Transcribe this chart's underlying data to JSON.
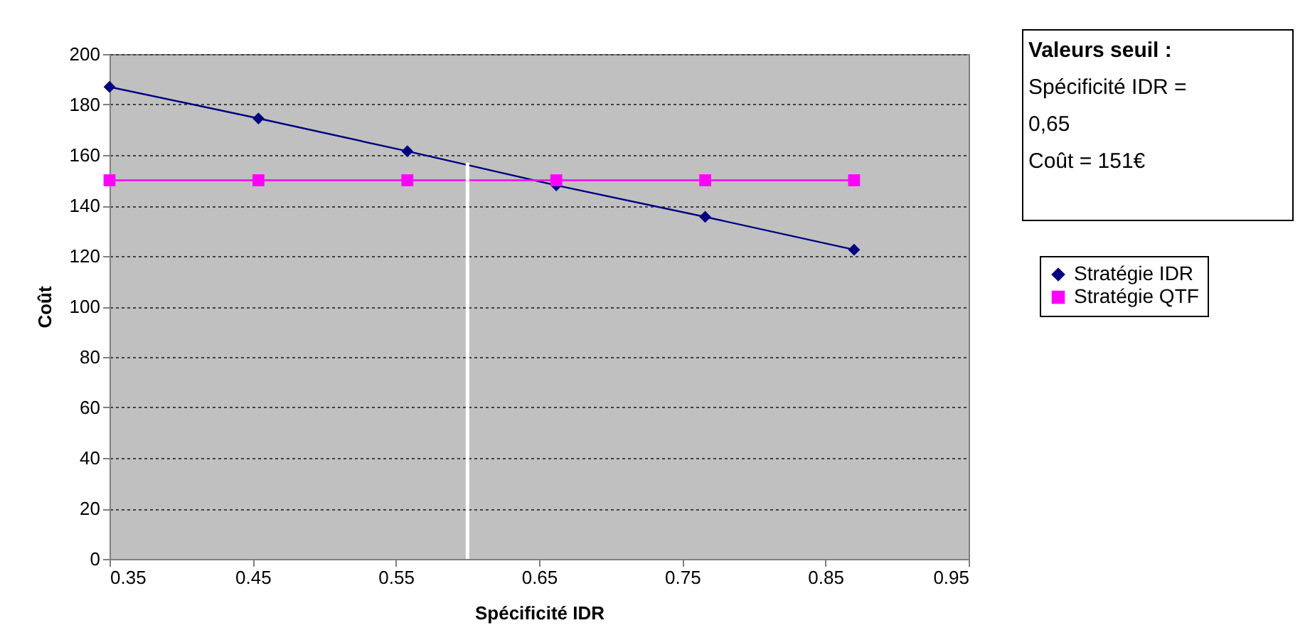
{
  "chart_data": {
    "type": "line",
    "xlabel": "Spécificité IDR",
    "ylabel": "Coût",
    "xlim": [
      0.35,
      0.95
    ],
    "xticks": [
      0.35,
      0.45,
      0.55,
      0.65,
      0.75,
      0.85,
      0.95
    ],
    "ylim": [
      0,
      200
    ],
    "yticks": [
      0,
      20,
      40,
      60,
      80,
      100,
      120,
      140,
      160,
      180,
      200
    ],
    "grid": "y",
    "legend": "right",
    "annotations": [
      "Valeurs seuil :",
      "Spécificité IDR =",
      "0,65",
      "Coût = 151€"
    ],
    "series": [
      {
        "name": "Stratégie IDR",
        "color": "#000080",
        "marker": "diamond",
        "x": [
          0.35,
          0.454,
          0.558,
          0.662,
          0.766,
          0.87
        ],
        "values": [
          187,
          174.5,
          161.5,
          148,
          135.5,
          122.5
        ]
      },
      {
        "name": "Stratégie QTF",
        "color": "#ff00ff",
        "marker": "square",
        "x": [
          0.35,
          0.454,
          0.558,
          0.662,
          0.766,
          0.87
        ],
        "values": [
          150,
          150,
          150,
          150,
          150,
          150
        ]
      },
      {
        "color": "#ffffff",
        "marker": "none",
        "x": [
          0.6,
          0.6
        ],
        "values": [
          0,
          157
        ]
      }
    ]
  }
}
